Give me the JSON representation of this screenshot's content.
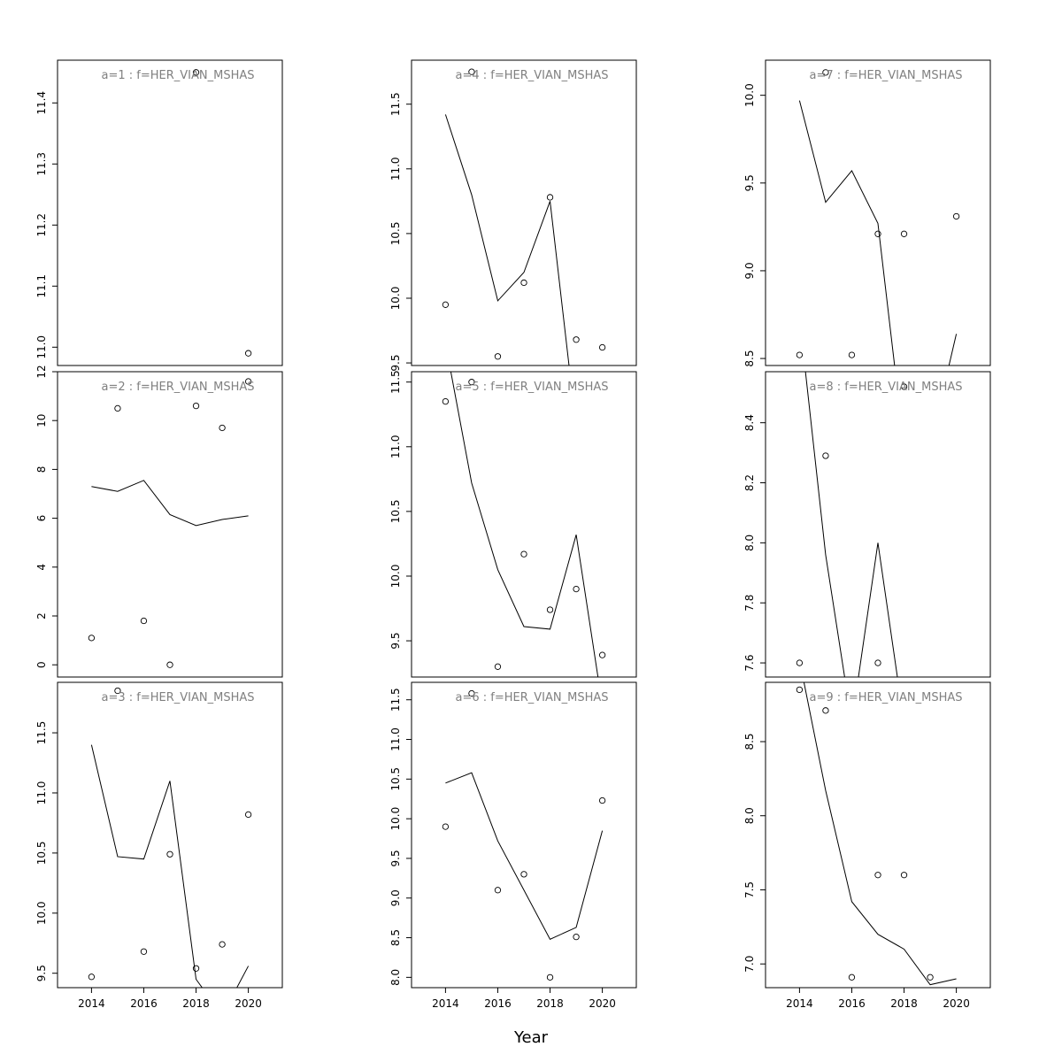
{
  "figure": {
    "xlabel": "Year"
  },
  "chart_data": [
    {
      "type": "scatter",
      "title": "a=1 : f=HER_VIAN_MSHAS",
      "x": [
        2014,
        2015,
        2016,
        2017,
        2018,
        2019,
        2020
      ],
      "observed": [
        null,
        null,
        null,
        null,
        11.45,
        null,
        10.99
      ],
      "fitted": [
        null,
        null,
        null,
        null,
        null,
        null,
        null
      ],
      "xlim": [
        2012.7,
        2021.3
      ],
      "ylim": [
        10.97,
        11.47
      ],
      "yticks": [
        11.0,
        11.1,
        11.2,
        11.3,
        11.4
      ],
      "ytick_labels": [
        "11.0",
        "11.1",
        "11.2",
        "11.3",
        "11.4"
      ],
      "xticks": [
        2014,
        2016,
        2018,
        2020
      ],
      "xtick_labels": [
        "2014",
        "2016",
        "2018",
        "2020"
      ],
      "show_xaxis": false
    },
    {
      "type": "scatter",
      "title": "a=2 : f=HER_VIAN_MSHAS",
      "x": [
        2014,
        2015,
        2016,
        2017,
        2018,
        2019,
        2020
      ],
      "observed": [
        1.1,
        10.5,
        1.8,
        0.0,
        10.6,
        9.7,
        11.6
      ],
      "fitted": [
        7.3,
        7.1,
        7.55,
        6.15,
        5.7,
        5.95,
        6.1
      ],
      "xlim": [
        2012.7,
        2021.3
      ],
      "ylim": [
        -0.5,
        12.0
      ],
      "yticks": [
        0,
        2,
        4,
        6,
        8,
        10,
        12
      ],
      "ytick_labels": [
        "0",
        "2",
        "4",
        "6",
        "8",
        "10",
        "12"
      ],
      "xticks": [
        2014,
        2016,
        2018,
        2020
      ],
      "xtick_labels": [
        "2014",
        "2016",
        "2018",
        "2020"
      ],
      "show_xaxis": false
    },
    {
      "type": "scatter",
      "title": "a=3 : f=HER_VIAN_MSHAS",
      "x": [
        2014,
        2015,
        2016,
        2017,
        2018,
        2019,
        2020
      ],
      "observed": [
        9.47,
        11.85,
        9.68,
        10.49,
        9.54,
        9.74,
        10.82
      ],
      "fitted": [
        11.4,
        10.47,
        10.45,
        11.1,
        9.45,
        9.15,
        9.56
      ],
      "xlim": [
        2012.7,
        2021.3
      ],
      "ylim": [
        9.38,
        11.92
      ],
      "yticks": [
        9.5,
        10.0,
        10.5,
        11.0,
        11.5
      ],
      "ytick_labels": [
        "9.5",
        "10.0",
        "10.5",
        "11.0",
        "11.5"
      ],
      "xticks": [
        2014,
        2016,
        2018,
        2020
      ],
      "xtick_labels": [
        "2014",
        "2016",
        "2018",
        "2020"
      ],
      "show_xaxis": true
    },
    {
      "type": "scatter",
      "title": "a=4 : f=HER_VIAN_MSHAS",
      "x": [
        2014,
        2015,
        2016,
        2017,
        2018,
        2019,
        2020
      ],
      "observed": [
        9.95,
        11.75,
        9.55,
        10.12,
        10.78,
        9.68,
        9.62
      ],
      "fitted": [
        11.42,
        10.8,
        9.98,
        10.2,
        10.75,
        9.0,
        9.0
      ],
      "xlim": [
        2012.7,
        2021.3
      ],
      "ylim": [
        9.48,
        11.84
      ],
      "yticks": [
        9.5,
        10.0,
        10.5,
        11.0,
        11.5
      ],
      "ytick_labels": [
        "9.5",
        "10.0",
        "10.5",
        "11.0",
        "11.5"
      ],
      "xticks": [
        2014,
        2016,
        2018,
        2020
      ],
      "xtick_labels": [
        "2014",
        "2016",
        "2018",
        "2020"
      ],
      "show_xaxis": false
    },
    {
      "type": "scatter",
      "title": "a=5 : f=HER_VIAN_MSHAS",
      "x": [
        2014,
        2015,
        2016,
        2017,
        2018,
        2019,
        2020
      ],
      "observed": [
        11.35,
        11.5,
        9.3,
        10.17,
        9.74,
        9.9,
        9.39
      ],
      "fitted": [
        11.8,
        10.72,
        10.05,
        9.61,
        9.59,
        10.32,
        9.0
      ],
      "xlim": [
        2012.7,
        2021.3
      ],
      "ylim": [
        9.22,
        11.58
      ],
      "yticks": [
        9.5,
        10.0,
        10.5,
        11.0,
        11.5
      ],
      "ytick_labels": [
        "9.5",
        "10.0",
        "10.5",
        "11.0",
        "11.5"
      ],
      "xticks": [
        2014,
        2016,
        2018,
        2020
      ],
      "xtick_labels": [
        "2014",
        "2016",
        "2018",
        "2020"
      ],
      "show_xaxis": false
    },
    {
      "type": "scatter",
      "title": "a=6 : f=HER_VIAN_MSHAS",
      "x": [
        2014,
        2015,
        2016,
        2017,
        2018,
        2019,
        2020
      ],
      "observed": [
        9.9,
        11.58,
        9.1,
        9.3,
        8.0,
        8.51,
        10.23
      ],
      "fitted": [
        10.45,
        10.58,
        9.72,
        9.1,
        8.48,
        8.63,
        9.85
      ],
      "xlim": [
        2012.7,
        2021.3
      ],
      "ylim": [
        7.87,
        11.72
      ],
      "yticks": [
        8.0,
        8.5,
        9.0,
        9.5,
        10.0,
        10.5,
        11.0,
        11.5
      ],
      "ytick_labels": [
        "8.0",
        "8.5",
        "9.0",
        "9.5",
        "10.0",
        "10.5",
        "11.0",
        "11.5"
      ],
      "xticks": [
        2014,
        2016,
        2018,
        2020
      ],
      "xtick_labels": [
        "2014",
        "2016",
        "2018",
        "2020"
      ],
      "show_xaxis": true
    },
    {
      "type": "scatter",
      "title": "a=7 : f=HER_VIAN_MSHAS",
      "x": [
        2014,
        2015,
        2016,
        2017,
        2018,
        2019,
        2020
      ],
      "observed": [
        8.52,
        10.13,
        8.52,
        9.21,
        9.21,
        null,
        9.31
      ],
      "fitted": [
        9.97,
        9.39,
        9.57,
        9.27,
        8.0,
        8.0,
        8.64
      ],
      "xlim": [
        2012.7,
        2021.3
      ],
      "ylim": [
        8.46,
        10.2
      ],
      "yticks": [
        8.5,
        9.0,
        9.5,
        10.0
      ],
      "ytick_labels": [
        "8.5",
        "9.0",
        "9.5",
        "10.0"
      ],
      "xticks": [
        2014,
        2016,
        2018,
        2020
      ],
      "xtick_labels": [
        "2014",
        "2016",
        "2018",
        "2020"
      ],
      "show_xaxis": false
    },
    {
      "type": "scatter",
      "title": "a=8 : f=HER_VIAN_MSHAS",
      "x": [
        2014,
        2015,
        2016,
        2017,
        2018,
        2019,
        2020
      ],
      "observed": [
        7.6,
        8.29,
        null,
        7.6,
        8.52,
        null,
        null
      ],
      "fitted": [
        8.75,
        7.96,
        7.4,
        8.0,
        7.4,
        null,
        null
      ],
      "xlim": [
        2012.7,
        2021.3
      ],
      "ylim": [
        7.553,
        8.57
      ],
      "yticks": [
        7.6,
        7.8,
        8.0,
        8.2,
        8.4
      ],
      "ytick_labels": [
        "7.6",
        "7.8",
        "8.0",
        "8.2",
        "8.4"
      ],
      "xticks": [
        2014,
        2016,
        2018,
        2020
      ],
      "xtick_labels": [
        "2014",
        "2016",
        "2018",
        "2020"
      ],
      "show_xaxis": false
    },
    {
      "type": "scatter",
      "title": "a=9 : f=HER_VIAN_MSHAS",
      "x": [
        2014,
        2015,
        2016,
        2017,
        2018,
        2019,
        2020
      ],
      "observed": [
        8.85,
        8.71,
        6.91,
        7.6,
        7.6,
        6.91,
        null
      ],
      "fitted": [
        9.05,
        8.17,
        7.42,
        7.2,
        7.1,
        6.86,
        6.9
      ],
      "xlim": [
        2012.7,
        2021.3
      ],
      "ylim": [
        6.84,
        8.9
      ],
      "yticks": [
        7.0,
        7.5,
        8.0,
        8.5
      ],
      "ytick_labels": [
        "7.0",
        "7.5",
        "8.0",
        "8.5"
      ],
      "xticks": [
        2014,
        2016,
        2018,
        2020
      ],
      "xtick_labels": [
        "2014",
        "2016",
        "2018",
        "2020"
      ],
      "show_xaxis": true
    }
  ]
}
